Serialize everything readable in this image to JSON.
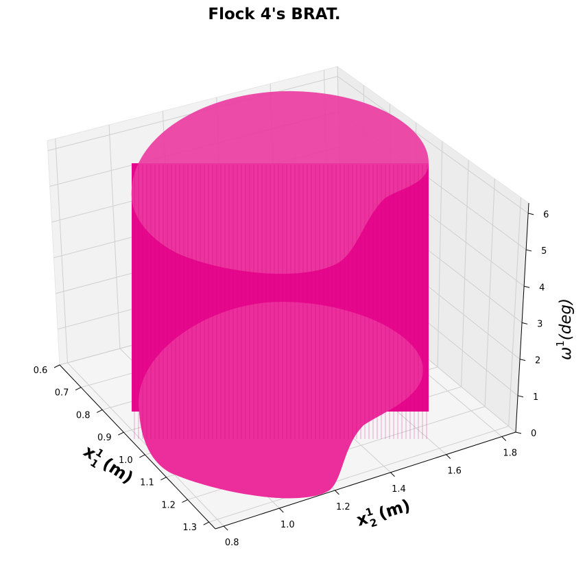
{
  "chart_data": {
    "type": "surface3d",
    "title": "Flock 4's BRAT.",
    "x1_label": {
      "base": "x",
      "sup": "1",
      "sub": "1",
      "unit": "(m)"
    },
    "x2_label": {
      "base": "x",
      "sup": "1",
      "sub": "2",
      "unit": "(m)"
    },
    "z_label": {
      "base": "ω",
      "sup": "1",
      "unit": "(deg)"
    },
    "x1_ticks": [
      "0.6",
      "0.7",
      "0.8",
      "0.9",
      "1.0",
      "1.1",
      "1.2",
      "1.3"
    ],
    "x2_ticks": [
      "0.8",
      "1.0",
      "1.2",
      "1.4",
      "1.6",
      "1.8"
    ],
    "z_ticks": [
      "0",
      "1",
      "2",
      "3",
      "4",
      "5",
      "6"
    ],
    "x1_range": [
      0.6,
      1.33
    ],
    "x2_range": [
      0.77,
      1.85
    ],
    "z_range": [
      0,
      6.28
    ],
    "surface": {
      "description_shape": "extruded kidney-shaped cross-section from z=0 to z=2π",
      "color": "#e6088c",
      "z_min": 0,
      "z_max": 6.28
    },
    "grid": true,
    "pane_color": "#f2f2f2"
  }
}
